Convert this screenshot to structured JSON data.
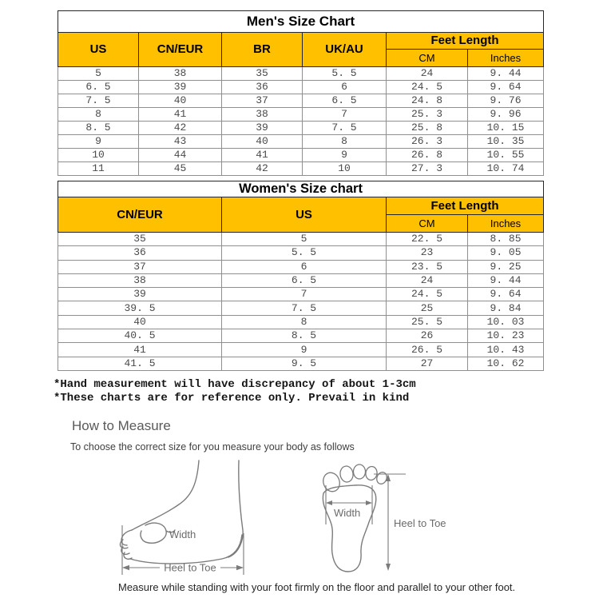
{
  "colors": {
    "header_bg": "#FFC000",
    "table_outer_border": "#262626",
    "table_grid": "#8f8f8f",
    "data_text": "#4a4a4a",
    "note_text": "#141414",
    "measure_heading": "#5a5a5a",
    "diagram_stroke": "#7b7b7b"
  },
  "mens_table": {
    "title": "Men's Size Chart",
    "headers": {
      "us": "US",
      "cn_eur": "CN/EUR",
      "br": "BR",
      "uk_au": "UK/AU",
      "feet_length": "Feet Length",
      "cm": "CM",
      "inches": "Inches"
    },
    "rows": [
      [
        "5",
        "38",
        "35",
        "5. 5",
        "24",
        "9. 44"
      ],
      [
        "6. 5",
        "39",
        "36",
        "6",
        "24. 5",
        "9. 64"
      ],
      [
        "7. 5",
        "40",
        "37",
        "6. 5",
        "24. 8",
        "9. 76"
      ],
      [
        "8",
        "41",
        "38",
        "7",
        "25. 3",
        "9. 96"
      ],
      [
        "8. 5",
        "42",
        "39",
        "7. 5",
        "25. 8",
        "10. 15"
      ],
      [
        "9",
        "43",
        "40",
        "8",
        "26. 3",
        "10. 35"
      ],
      [
        "10",
        "44",
        "41",
        "9",
        "26. 8",
        "10. 55"
      ],
      [
        "11",
        "45",
        "42",
        "10",
        "27. 3",
        "10. 74"
      ]
    ]
  },
  "womens_table": {
    "title": "Women's Size chart",
    "headers": {
      "cn_eur": "CN/EUR",
      "us": "US",
      "feet_length": "Feet Length",
      "cm": "CM",
      "inches": "Inches"
    },
    "rows": [
      [
        "35",
        "5",
        "22. 5",
        "8. 85"
      ],
      [
        "36",
        "5. 5",
        "23",
        "9. 05"
      ],
      [
        "37",
        "6",
        "23. 5",
        "9. 25"
      ],
      [
        "38",
        "6. 5",
        "24",
        "9. 44"
      ],
      [
        "39",
        "7",
        "24. 5",
        "9. 64"
      ],
      [
        "39. 5",
        "7. 5",
        "25",
        "9. 84"
      ],
      [
        "40",
        "8",
        "25. 5",
        "10. 03"
      ],
      [
        "40. 5",
        "8. 5",
        "26",
        "10. 23"
      ],
      [
        "41",
        "9",
        "26. 5",
        "10. 43"
      ],
      [
        "41. 5",
        "9. 5",
        "27",
        "10. 62"
      ]
    ]
  },
  "notes": {
    "line1": "*Hand measurement will have discrepancy of about 1-3cm",
    "line2": "*These charts are for reference only. Prevail in kind"
  },
  "how_to_measure": {
    "heading": "How to Measure",
    "subheading": "To choose the correct size for you measure your body as follows",
    "caption": "Measure while standing with your foot firmly on the floor and parallel to your other foot."
  },
  "diagrams": {
    "side_view": {
      "width_label": "Width",
      "length_label": "Heel to Toe"
    },
    "sole_view": {
      "width_label": "Width",
      "length_label": "Heel to Toe"
    }
  }
}
